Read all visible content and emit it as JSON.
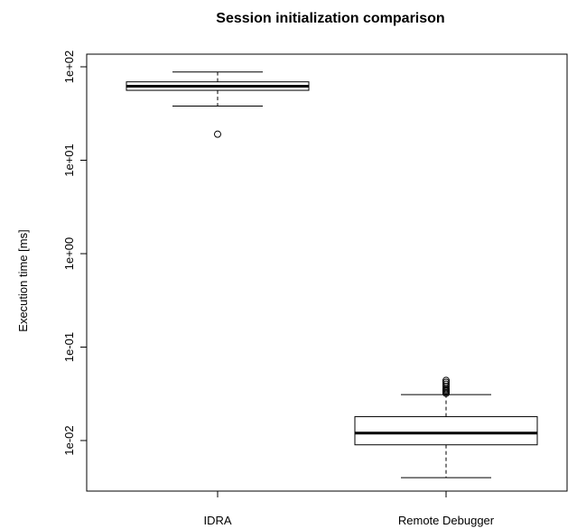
{
  "chart_data": {
    "type": "boxplot",
    "title": "Session initialization comparison",
    "xlabel": "",
    "ylabel": "Execution time [ms]",
    "yscale": "log10",
    "ylim": [
      0.0027,
      130
    ],
    "yticks": [
      {
        "value": 0.01,
        "label": "1e-02"
      },
      {
        "value": 0.1,
        "label": "1e-01"
      },
      {
        "value": 1,
        "label": "1e+00"
      },
      {
        "value": 10,
        "label": "1e+01"
      },
      {
        "value": 100,
        "label": "1e+02"
      }
    ],
    "categories": [
      "IDRA",
      "Remote Debugger"
    ],
    "boxes": [
      {
        "category": "IDRA",
        "whisker_low": 38,
        "q1": 56,
        "median": 62,
        "q3": 69,
        "whisker_high": 88,
        "outliers": [
          19
        ]
      },
      {
        "category": "Remote Debugger",
        "whisker_low": 0.004,
        "q1": 0.009,
        "median": 0.012,
        "q3": 0.018,
        "whisker_high": 0.031,
        "outliers": [
          0.032,
          0.033,
          0.034,
          0.035,
          0.036,
          0.038,
          0.04,
          0.042,
          0.044
        ]
      }
    ],
    "grid": false,
    "legend": "none"
  }
}
